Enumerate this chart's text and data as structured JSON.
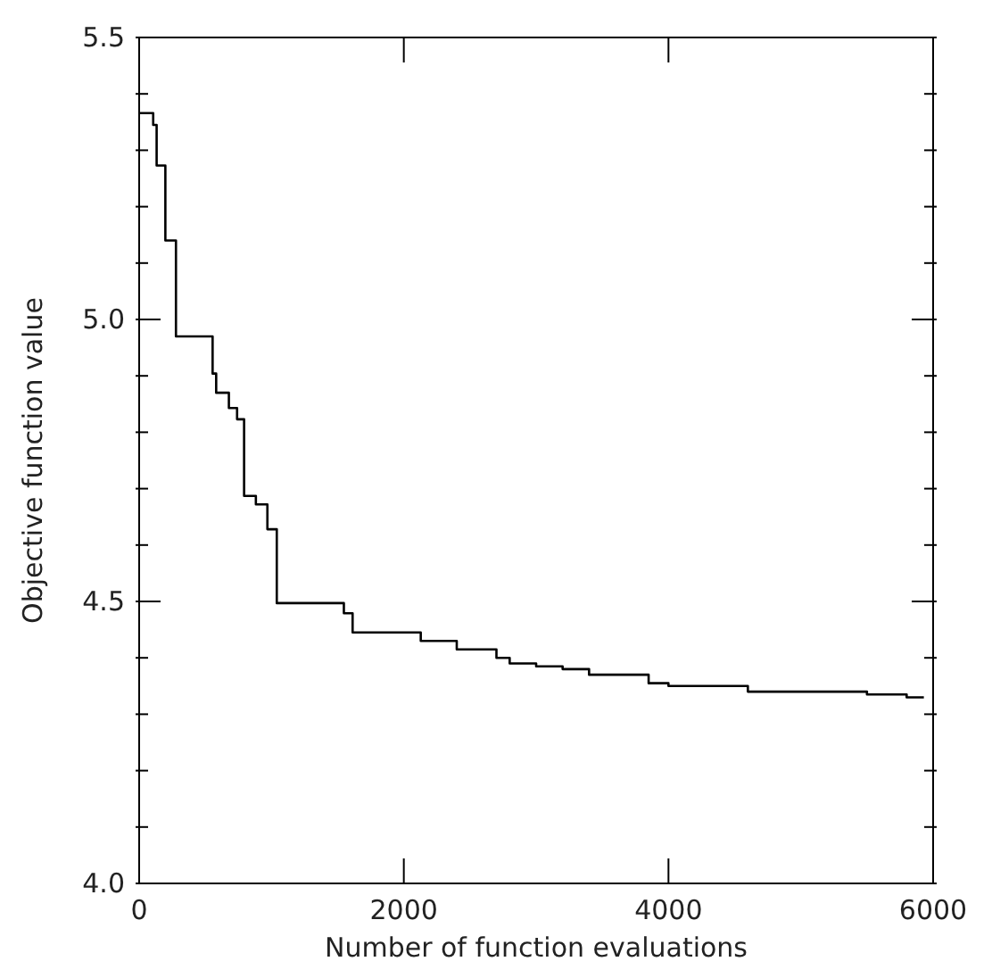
{
  "chart_data": {
    "type": "step",
    "xlabel": "Number of function evaluations",
    "ylabel": "Objective function value",
    "x": [
      0,
      106,
      132,
      198,
      278,
      555,
      582,
      678,
      740,
      793,
      882,
      969,
      1040,
      1547,
      1613,
      2128,
      2400,
      2700,
      2800,
      3000,
      3200,
      3400,
      3850,
      4000,
      4600,
      5500,
      5800,
      5930
    ],
    "series": [
      {
        "color": "#000000",
        "values": [
          5.366,
          5.345,
          5.273,
          5.14,
          4.97,
          4.904,
          4.87,
          4.843,
          4.823,
          4.687,
          4.672,
          4.628,
          4.497,
          4.479,
          4.445,
          4.43,
          4.415,
          4.4,
          4.39,
          4.385,
          4.38,
          4.37,
          4.355,
          4.35,
          4.34,
          4.335,
          4.33,
          4.33
        ]
      }
    ],
    "xlim": [
      0,
      6000
    ],
    "xticks": [
      0,
      2000,
      4000,
      6000
    ],
    "ylim": [
      4.0,
      5.5
    ],
    "yticks": [
      {
        "value": 4.0,
        "label": "4.0"
      },
      {
        "value": 4.1,
        "label": null
      },
      {
        "value": 4.2,
        "label": null
      },
      {
        "value": 4.3,
        "label": null
      },
      {
        "value": 4.4,
        "label": null
      },
      {
        "value": 4.5,
        "label": "4.5"
      },
      {
        "value": 4.6,
        "label": null
      },
      {
        "value": 4.7,
        "label": null
      },
      {
        "value": 4.8,
        "label": null
      },
      {
        "value": 4.9,
        "label": null
      },
      {
        "value": 5.0,
        "label": "5.0"
      },
      {
        "value": 5.1,
        "label": null
      },
      {
        "value": 5.2,
        "label": null
      },
      {
        "value": 5.3,
        "label": null
      },
      {
        "value": 5.4,
        "label": null
      },
      {
        "value": 5.5,
        "label": "5.5"
      }
    ],
    "grid": false,
    "legend": false
  }
}
